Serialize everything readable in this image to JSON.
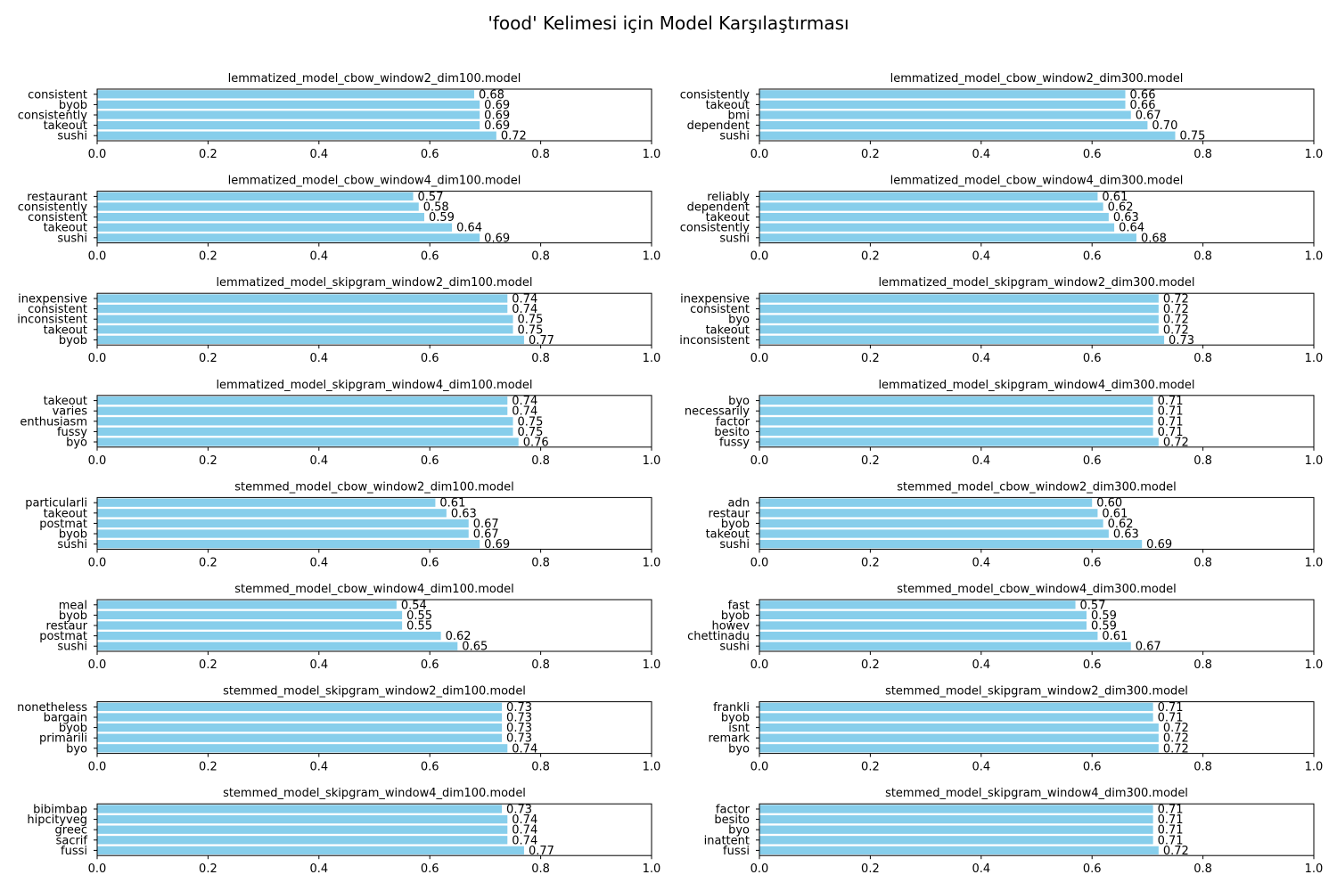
{
  "figure": {
    "title": "'food' Kelimesi için Model Karşılaştırması"
  },
  "colors": {
    "bar": "#87ceeb",
    "axis": "#000000"
  },
  "chart_data": [
    {
      "type": "bar",
      "orientation": "horizontal",
      "title": "lemmatized_model_cbow_window2_dim100.model",
      "categories": [
        "sushi",
        "takeout",
        "consistently",
        "byob",
        "consistent"
      ],
      "values": [
        0.72,
        0.69,
        0.69,
        0.69,
        0.68
      ],
      "xlim": [
        0,
        1.0
      ],
      "xticks": [
        "0.0",
        "0.2",
        "0.4",
        "0.6",
        "0.8",
        "1.0"
      ]
    },
    {
      "type": "bar",
      "orientation": "horizontal",
      "title": "lemmatized_model_cbow_window2_dim300.model",
      "categories": [
        "sushi",
        "dependent",
        "bmi",
        "takeout",
        "consistently"
      ],
      "values": [
        0.75,
        0.7,
        0.67,
        0.66,
        0.66
      ],
      "xlim": [
        0,
        1.0
      ],
      "xticks": [
        "0.0",
        "0.2",
        "0.4",
        "0.6",
        "0.8",
        "1.0"
      ]
    },
    {
      "type": "bar",
      "orientation": "horizontal",
      "title": "lemmatized_model_cbow_window4_dim100.model",
      "categories": [
        "sushi",
        "takeout",
        "consistent",
        "consistently",
        "restaurant"
      ],
      "values": [
        0.69,
        0.64,
        0.59,
        0.58,
        0.57
      ],
      "xlim": [
        0,
        1.0
      ],
      "xticks": [
        "0.0",
        "0.2",
        "0.4",
        "0.6",
        "0.8",
        "1.0"
      ]
    },
    {
      "type": "bar",
      "orientation": "horizontal",
      "title": "lemmatized_model_cbow_window4_dim300.model",
      "categories": [
        "sushi",
        "consistently",
        "takeout",
        "dependent",
        "reliably"
      ],
      "values": [
        0.68,
        0.64,
        0.63,
        0.62,
        0.61
      ],
      "xlim": [
        0,
        1.0
      ],
      "xticks": [
        "0.0",
        "0.2",
        "0.4",
        "0.6",
        "0.8",
        "1.0"
      ]
    },
    {
      "type": "bar",
      "orientation": "horizontal",
      "title": "lemmatized_model_skipgram_window2_dim100.model",
      "categories": [
        "byob",
        "takeout",
        "inconsistent",
        "consistent",
        "inexpensive"
      ],
      "values": [
        0.77,
        0.75,
        0.75,
        0.74,
        0.74
      ],
      "xlim": [
        0,
        1.0
      ],
      "xticks": [
        "0.0",
        "0.2",
        "0.4",
        "0.6",
        "0.8",
        "1.0"
      ]
    },
    {
      "type": "bar",
      "orientation": "horizontal",
      "title": "lemmatized_model_skipgram_window2_dim300.model",
      "categories": [
        "inconsistent",
        "takeout",
        "byo",
        "consistent",
        "inexpensive"
      ],
      "values": [
        0.73,
        0.72,
        0.72,
        0.72,
        0.72
      ],
      "xlim": [
        0,
        1.0
      ],
      "xticks": [
        "0.0",
        "0.2",
        "0.4",
        "0.6",
        "0.8",
        "1.0"
      ]
    },
    {
      "type": "bar",
      "orientation": "horizontal",
      "title": "lemmatized_model_skipgram_window4_dim100.model",
      "categories": [
        "byo",
        "fussy",
        "enthusiasm",
        "varies",
        "takeout"
      ],
      "values": [
        0.76,
        0.75,
        0.75,
        0.74,
        0.74
      ],
      "xlim": [
        0,
        1.0
      ],
      "xticks": [
        "0.0",
        "0.2",
        "0.4",
        "0.6",
        "0.8",
        "1.0"
      ]
    },
    {
      "type": "bar",
      "orientation": "horizontal",
      "title": "lemmatized_model_skipgram_window4_dim300.model",
      "categories": [
        "fussy",
        "besito",
        "factor",
        "necessarily",
        "byo"
      ],
      "values": [
        0.72,
        0.71,
        0.71,
        0.71,
        0.71
      ],
      "xlim": [
        0,
        1.0
      ],
      "xticks": [
        "0.0",
        "0.2",
        "0.4",
        "0.6",
        "0.8",
        "1.0"
      ]
    },
    {
      "type": "bar",
      "orientation": "horizontal",
      "title": "stemmed_model_cbow_window2_dim100.model",
      "categories": [
        "sushi",
        "byob",
        "postmat",
        "takeout",
        "particularli"
      ],
      "values": [
        0.69,
        0.67,
        0.67,
        0.63,
        0.61
      ],
      "xlim": [
        0,
        1.0
      ],
      "xticks": [
        "0.0",
        "0.2",
        "0.4",
        "0.6",
        "0.8",
        "1.0"
      ]
    },
    {
      "type": "bar",
      "orientation": "horizontal",
      "title": "stemmed_model_cbow_window2_dim300.model",
      "categories": [
        "sushi",
        "takeout",
        "byob",
        "restaur",
        "adn"
      ],
      "values": [
        0.69,
        0.63,
        0.62,
        0.61,
        0.6
      ],
      "xlim": [
        0,
        1.0
      ],
      "xticks": [
        "0.0",
        "0.2",
        "0.4",
        "0.6",
        "0.8",
        "1.0"
      ]
    },
    {
      "type": "bar",
      "orientation": "horizontal",
      "title": "stemmed_model_cbow_window4_dim100.model",
      "categories": [
        "sushi",
        "postmat",
        "restaur",
        "byob",
        "meal"
      ],
      "values": [
        0.65,
        0.62,
        0.55,
        0.55,
        0.54
      ],
      "xlim": [
        0,
        1.0
      ],
      "xticks": [
        "0.0",
        "0.2",
        "0.4",
        "0.6",
        "0.8",
        "1.0"
      ]
    },
    {
      "type": "bar",
      "orientation": "horizontal",
      "title": "stemmed_model_cbow_window4_dim300.model",
      "categories": [
        "sushi",
        "chettinadu",
        "howev",
        "byob",
        "fast"
      ],
      "values": [
        0.67,
        0.61,
        0.59,
        0.59,
        0.57
      ],
      "xlim": [
        0,
        1.0
      ],
      "xticks": [
        "0.0",
        "0.2",
        "0.4",
        "0.6",
        "0.8",
        "1.0"
      ]
    },
    {
      "type": "bar",
      "orientation": "horizontal",
      "title": "stemmed_model_skipgram_window2_dim100.model",
      "categories": [
        "byo",
        "primarili",
        "byob",
        "bargain",
        "nonetheless"
      ],
      "values": [
        0.74,
        0.73,
        0.73,
        0.73,
        0.73
      ],
      "xlim": [
        0,
        1.0
      ],
      "xticks": [
        "0.0",
        "0.2",
        "0.4",
        "0.6",
        "0.8",
        "1.0"
      ]
    },
    {
      "type": "bar",
      "orientation": "horizontal",
      "title": "stemmed_model_skipgram_window2_dim300.model",
      "categories": [
        "byo",
        "remark",
        "isnt",
        "byob",
        "frankli"
      ],
      "values": [
        0.72,
        0.72,
        0.72,
        0.71,
        0.71
      ],
      "xlim": [
        0,
        1.0
      ],
      "xticks": [
        "0.0",
        "0.2",
        "0.4",
        "0.6",
        "0.8",
        "1.0"
      ]
    },
    {
      "type": "bar",
      "orientation": "horizontal",
      "title": "stemmed_model_skipgram_window4_dim100.model",
      "categories": [
        "fussi",
        "sacrif",
        "greec",
        "hipcityveg",
        "bibimbap"
      ],
      "values": [
        0.77,
        0.74,
        0.74,
        0.74,
        0.73
      ],
      "xlim": [
        0,
        1.0
      ],
      "xticks": [
        "0.0",
        "0.2",
        "0.4",
        "0.6",
        "0.8",
        "1.0"
      ]
    },
    {
      "type": "bar",
      "orientation": "horizontal",
      "title": "stemmed_model_skipgram_window4_dim300.model",
      "categories": [
        "fussi",
        "inattent",
        "byo",
        "besito",
        "factor"
      ],
      "values": [
        0.72,
        0.71,
        0.71,
        0.71,
        0.71
      ],
      "xlim": [
        0,
        1.0
      ],
      "xticks": [
        "0.0",
        "0.2",
        "0.4",
        "0.6",
        "0.8",
        "1.0"
      ]
    }
  ]
}
